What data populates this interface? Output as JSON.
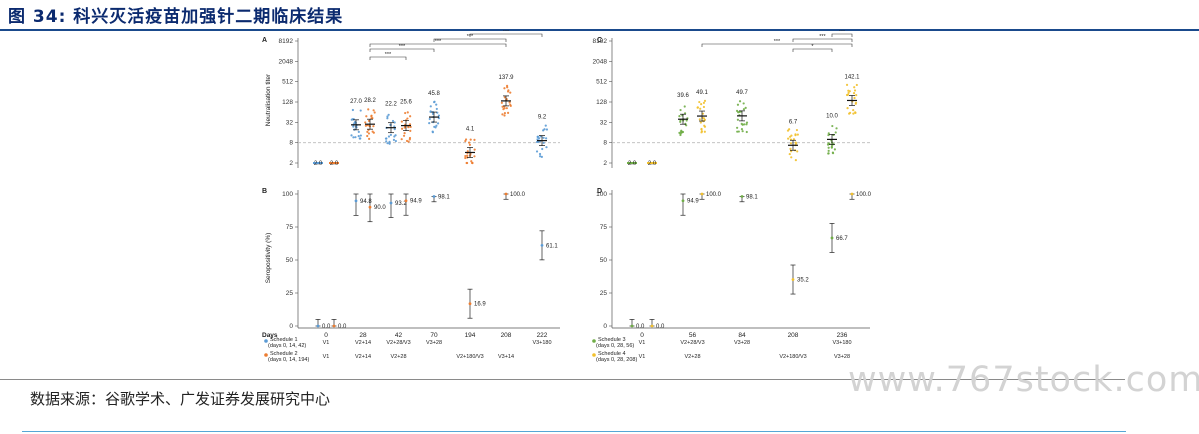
{
  "page": {
    "title": "图 34: 科兴灭活疫苗加强针二期临床结果",
    "source": "数据来源：谷歌学术、广发证券发展研究中心",
    "watermark": "www.767stock.com"
  },
  "chart_data": [
    {
      "panel": "A",
      "type": "scatter",
      "ylabel": "Neutralisation titer",
      "yscale": "log2",
      "yticks": [
        2,
        8,
        32,
        128,
        512,
        2048,
        8192
      ],
      "ylim": [
        1.6,
        8192
      ],
      "threshold": 8,
      "points": [
        {
          "x": "0",
          "value": 2.0,
          "label": "2.0",
          "schedule": 1
        },
        {
          "x": "0",
          "value": 2.0,
          "label": "2.0",
          "schedule": 2
        },
        {
          "x": "28",
          "value": 27.0,
          "label": "27.0",
          "schedule": 1
        },
        {
          "x": "28",
          "value": 28.2,
          "label": "28.2",
          "schedule": 2
        },
        {
          "x": "42",
          "value": 22.2,
          "label": "22.2",
          "schedule": 1
        },
        {
          "x": "42",
          "value": 25.6,
          "label": "25.6",
          "schedule": 2
        },
        {
          "x": "70",
          "value": 45.8,
          "label": "45.8",
          "schedule": 1
        },
        {
          "x": "194",
          "value": 4.1,
          "label": "4.1",
          "schedule": 2
        },
        {
          "x": "208",
          "value": 137.9,
          "label": "137.9",
          "schedule": 2
        },
        {
          "x": "222",
          "value": 9.2,
          "label": "9.2",
          "schedule": 1
        }
      ],
      "significance_label": "***"
    },
    {
      "panel": "C",
      "type": "scatter",
      "ylabel": "",
      "yscale": "log2",
      "yticks": [
        2,
        8,
        32,
        128,
        512,
        2048,
        8192
      ],
      "ylim": [
        1.6,
        8192
      ],
      "threshold": 8,
      "points": [
        {
          "x": "0",
          "value": 2.0,
          "label": "2.0",
          "schedule": 3
        },
        {
          "x": "0",
          "value": 2.0,
          "label": "2.0",
          "schedule": 4
        },
        {
          "x": "56",
          "value": 39.6,
          "label": "39.6",
          "schedule": 3
        },
        {
          "x": "56",
          "value": 49.1,
          "label": "49.1",
          "schedule": 4
        },
        {
          "x": "84",
          "value": 49.7,
          "label": "49.7",
          "schedule": 3
        },
        {
          "x": "208",
          "value": 6.7,
          "label": "6.7",
          "schedule": 4
        },
        {
          "x": "236",
          "value": 10.0,
          "label": "10.0",
          "schedule": 3
        },
        {
          "x": "236",
          "value": 142.1,
          "label": "142.1",
          "schedule": 4
        }
      ],
      "significance_labels": [
        "***",
        "***",
        "*",
        "***"
      ]
    },
    {
      "panel": "B",
      "type": "scatter",
      "ylabel": "Seropositivity (%)",
      "yticks": [
        0,
        25,
        50,
        75,
        100
      ],
      "ylim": [
        0,
        100
      ],
      "points": [
        {
          "x": "0",
          "value": 0.0,
          "label": "0.0",
          "schedule": 1
        },
        {
          "x": "0",
          "value": 0.0,
          "label": "0.0",
          "schedule": 2
        },
        {
          "x": "28",
          "value": 94.8,
          "label": "94.8",
          "schedule": 1
        },
        {
          "x": "28",
          "value": 90.0,
          "label": "90.0",
          "schedule": 2
        },
        {
          "x": "42",
          "value": 93.2,
          "label": "93.2",
          "schedule": 1
        },
        {
          "x": "42",
          "value": 94.9,
          "label": "94.9",
          "schedule": 2
        },
        {
          "x": "70",
          "value": 98.1,
          "label": "98.1",
          "schedule": 1
        },
        {
          "x": "194",
          "value": 16.9,
          "label": "16.9",
          "schedule": 2
        },
        {
          "x": "208",
          "value": 100.0,
          "label": "100.0",
          "schedule": 2
        },
        {
          "x": "222",
          "value": 61.1,
          "label": "61.1",
          "schedule": 1
        }
      ],
      "xlabel": "Days",
      "categories": [
        "0",
        "28",
        "42",
        "70",
        "194",
        "208",
        "222"
      ],
      "schedule_rows": [
        {
          "name": "Schedule 1",
          "days": "(days 0, 14, 42)",
          "color": "#5b9bd5",
          "visits": [
            "V1",
            "V2+14",
            "V2+28/V3",
            "V3+28",
            "",
            "",
            "V3+180"
          ]
        },
        {
          "name": "Schedule 2",
          "days": "(days 0, 14, 194)",
          "color": "#ed7d31",
          "visits": [
            "V1",
            "V2+14",
            "V2+28",
            "",
            "V2+180/V3",
            "V3+14",
            ""
          ]
        }
      ]
    },
    {
      "panel": "D",
      "type": "scatter",
      "ylabel": "",
      "yticks": [
        0,
        25,
        50,
        75,
        100
      ],
      "ylim": [
        0,
        100
      ],
      "points": [
        {
          "x": "0",
          "value": 0.0,
          "label": "0.0",
          "schedule": 3
        },
        {
          "x": "0",
          "value": 0.0,
          "label": "0.0",
          "schedule": 4
        },
        {
          "x": "56",
          "value": 94.9,
          "label": "94.9",
          "schedule": 3
        },
        {
          "x": "56",
          "value": 100.0,
          "label": "100.0",
          "schedule": 4
        },
        {
          "x": "84",
          "value": 98.1,
          "label": "98.1",
          "schedule": 3
        },
        {
          "x": "208",
          "value": 35.2,
          "label": "35.2",
          "schedule": 4
        },
        {
          "x": "236",
          "value": 66.7,
          "label": "66.7",
          "schedule": 3
        },
        {
          "x": "236",
          "value": 100.0,
          "label": "100.0",
          "schedule": 4
        }
      ],
      "categories": [
        "0",
        "56",
        "84",
        "208",
        "236"
      ],
      "schedule_rows": [
        {
          "name": "Schedule 3",
          "days": "(days 0, 28, 56)",
          "color": "#70ad47",
          "visits": [
            "V1",
            "V2+28/V3",
            "V3+28",
            "",
            "V3+180"
          ]
        },
        {
          "name": "Schedule 4",
          "days": "(days 0, 28, 208)",
          "color": "#f2c12e",
          "visits": [
            "V1",
            "V2+28",
            "",
            "V2+180/V3",
            "V3+28"
          ]
        }
      ]
    }
  ]
}
